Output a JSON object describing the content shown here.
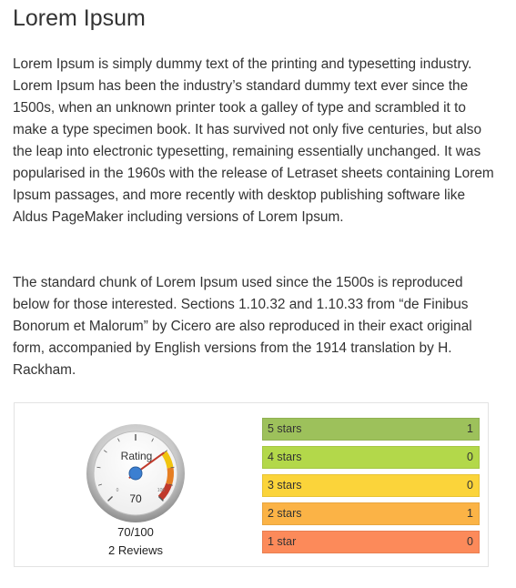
{
  "article": {
    "title": "Lorem Ipsum",
    "paragraphs": [
      "Lorem Ipsum is simply dummy text of the printing and typesetting industry. Lorem Ipsum has been the industry’s standard dummy text ever since the 1500s, when an unknown printer took a galley of type and scrambled it to make a type specimen book. It has survived not only five centuries, but also the leap into electronic typesetting, remaining essentially unchanged. It was popularised in the 1960s with the release of Letraset sheets containing Lorem Ipsum passages, and more recently with desktop publishing software like Aldus PageMaker including versions of Lorem Ipsum.",
      "The standard chunk of Lorem Ipsum used since the 1500s is reproduced below for those interested. Sections 1.10.32 and 1.10.33 from “de Finibus Bonorum et Malorum” by Cicero are also reproduced in their exact original form, accompanied by English versions from the 1914 translation by H. Rackham."
    ]
  },
  "rating": {
    "gauge": {
      "label": "Rating",
      "value": 70,
      "value_text": "70",
      "min": 0,
      "max": 100,
      "min_label": "0",
      "max_label": "100",
      "colors": {
        "needle": "#c0392b",
        "hub": "#3b7fd1",
        "band_yellow": "#f1c40f",
        "band_orange": "#e67e22",
        "band_red": "#c0392b"
      }
    },
    "score_text": "70/100",
    "reviews_text": "2 Reviews",
    "breakdown": [
      {
        "label": "5 stars",
        "count": "1",
        "color": "#9dc15b"
      },
      {
        "label": "4 stars",
        "count": "0",
        "color": "#b3d84a"
      },
      {
        "label": "3 stars",
        "count": "0",
        "color": "#fbd43a"
      },
      {
        "label": "2 stars",
        "count": "1",
        "color": "#fbb346"
      },
      {
        "label": "1 star",
        "count": "0",
        "color": "#fc8a5a"
      }
    ]
  }
}
